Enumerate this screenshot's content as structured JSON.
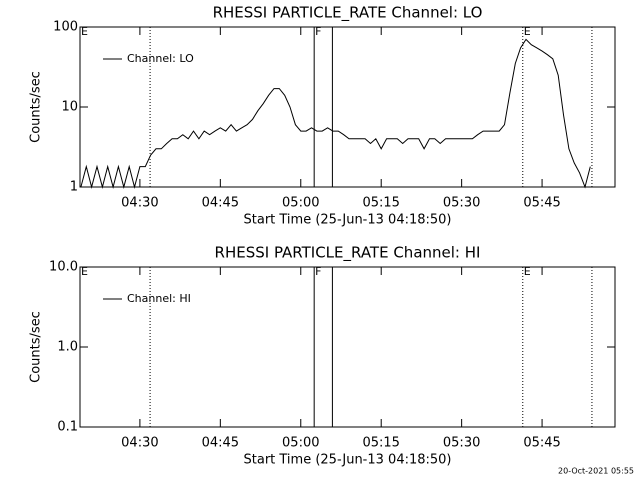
{
  "chart_data": [
    {
      "type": "line",
      "title": "RHESSI PARTICLE_RATE Channel: LO",
      "xlabel": "Start Time (25-Jun-13 04:18:50)",
      "ylabel": "Counts/sec",
      "log_y": true,
      "legend": "upper left",
      "xlim": [
        258.83,
        358.6
      ],
      "xticks": [
        {
          "value": 270,
          "label": "04:30"
        },
        {
          "value": 285,
          "label": "04:45"
        },
        {
          "value": 300,
          "label": "05:00"
        },
        {
          "value": 315,
          "label": "05:15"
        },
        {
          "value": 330,
          "label": "05:30"
        },
        {
          "value": 345,
          "label": "05:45"
        }
      ],
      "ylim": [
        1,
        100
      ],
      "yticks": [
        1,
        10,
        100
      ],
      "vlines": [
        {
          "x": 271.9,
          "style": "dotted"
        },
        {
          "x": 302.5,
          "style": "solid"
        },
        {
          "x": 305.9,
          "style": "solid"
        },
        {
          "x": 341.4,
          "style": "dotted"
        },
        {
          "x": 354.3,
          "style": "dotted"
        }
      ],
      "annotations": [
        {
          "text": "E",
          "x": 258.83
        },
        {
          "text": "F",
          "x": 302.5
        },
        {
          "text": "E",
          "x": 341.4
        }
      ],
      "series": [
        {
          "name": "Channel: LO",
          "color": "#000000",
          "x": [
            259,
            260,
            261,
            262,
            263,
            264,
            265,
            266,
            267,
            268,
            269,
            270,
            271,
            272,
            273,
            274,
            275,
            276,
            277,
            278,
            279,
            280,
            281,
            282,
            283,
            284,
            285,
            286,
            287,
            288,
            289,
            290,
            291,
            292,
            293,
            294,
            295,
            296,
            297,
            298,
            299,
            300,
            301,
            302,
            303,
            304,
            305,
            306,
            307,
            308,
            309,
            310,
            311,
            312,
            313,
            314,
            315,
            316,
            317,
            318,
            319,
            320,
            321,
            322,
            323,
            324,
            325,
            326,
            327,
            328,
            329,
            330,
            331,
            332,
            333,
            334,
            335,
            336,
            337,
            338,
            339,
            340,
            341,
            342,
            343,
            344,
            345,
            346,
            347,
            348,
            349,
            350,
            351,
            352,
            353,
            354
          ],
          "values": [
            1,
            1.8,
            1,
            1.8,
            1,
            1.8,
            1,
            1.8,
            1,
            1.8,
            1,
            1.8,
            1.8,
            2.5,
            3,
            3,
            3.5,
            4,
            4,
            4.5,
            4,
            5,
            4,
            5,
            4.5,
            5,
            5.5,
            5,
            6,
            5,
            5.5,
            6,
            7,
            9,
            11,
            14,
            17,
            17,
            14,
            10,
            6,
            5,
            5,
            5.5,
            5,
            5,
            5.5,
            5,
            5,
            4.5,
            4,
            4,
            4,
            4,
            3.5,
            4,
            3,
            4,
            4,
            4,
            3.5,
            4,
            4,
            4,
            3,
            4,
            4,
            3.5,
            4,
            4,
            4,
            4,
            4,
            4,
            4.5,
            5,
            5,
            5,
            5,
            6,
            15,
            35,
            55,
            70,
            60,
            55,
            50,
            45,
            40,
            25,
            8,
            3,
            2,
            1.5,
            1,
            1.8
          ]
        }
      ]
    },
    {
      "type": "line",
      "title": "RHESSI PARTICLE_RATE Channel: HI",
      "xlabel": "Start Time (25-Jun-13 04:18:50)",
      "ylabel": "Counts/sec",
      "log_y": true,
      "legend": "upper left",
      "xlim": [
        258.83,
        358.6
      ],
      "xticks": [
        {
          "value": 270,
          "label": "04:30"
        },
        {
          "value": 285,
          "label": "04:45"
        },
        {
          "value": 300,
          "label": "05:00"
        },
        {
          "value": 315,
          "label": "05:15"
        },
        {
          "value": 330,
          "label": "05:30"
        },
        {
          "value": 345,
          "label": "05:45"
        }
      ],
      "ylim": [
        0.1,
        10
      ],
      "yticks": [
        0.1,
        {
          "value": 1,
          "label": "1.0"
        },
        {
          "value": 10,
          "label": "10.0"
        }
      ],
      "vlines": [
        {
          "x": 271.9,
          "style": "dotted"
        },
        {
          "x": 302.5,
          "style": "solid"
        },
        {
          "x": 305.9,
          "style": "solid"
        },
        {
          "x": 341.4,
          "style": "dotted"
        },
        {
          "x": 354.3,
          "style": "dotted"
        }
      ],
      "annotations": [
        {
          "text": "E",
          "x": 258.83
        },
        {
          "text": "F",
          "x": 302.5
        },
        {
          "text": "E",
          "x": 341.4
        }
      ],
      "series": [
        {
          "name": "Channel: HI",
          "color": "#000000",
          "x": [],
          "values": []
        }
      ]
    }
  ],
  "footer": "20-Oct-2021 05:55"
}
